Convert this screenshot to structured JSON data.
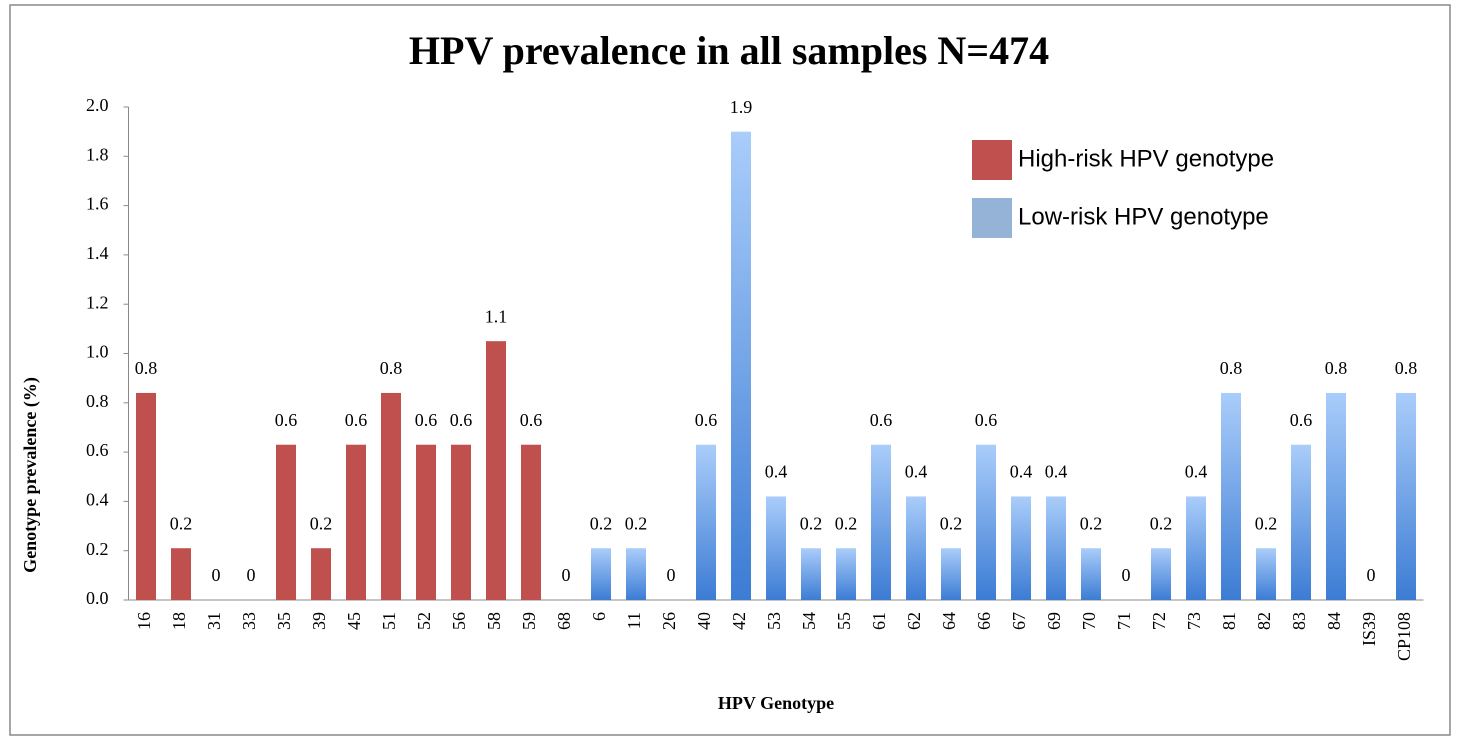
{
  "chart_data": {
    "type": "bar",
    "title": "HPV prevalence in all samples N=474",
    "x_label": "HPV Genotype",
    "y_label": "Genotype prevalence (%)",
    "categories": [
      "16",
      "18",
      "31",
      "33",
      "35",
      "39",
      "45",
      "51",
      "52",
      "56",
      "58",
      "59",
      "68",
      "6",
      "11",
      "26",
      "40",
      "42",
      "53",
      "54",
      "55",
      "61",
      "62",
      "64",
      "66",
      "67",
      "69",
      "70",
      "71",
      "72",
      "73",
      "81",
      "82",
      "83",
      "84",
      "IS39",
      "CP108"
    ],
    "series": [
      {
        "name": "High-risk HPV genotype",
        "color": "#c0504d",
        "values": [
          0.84,
          0.21,
          0,
          0,
          0.63,
          0.21,
          0.63,
          0.84,
          0.63,
          0.63,
          1.05,
          0.63,
          0,
          null,
          null,
          null,
          null,
          null,
          null,
          null,
          null,
          null,
          null,
          null,
          null,
          null,
          null,
          null,
          null,
          null,
          null,
          null,
          null,
          null,
          null,
          null,
          null
        ],
        "value_labels": [
          "0.8",
          "0.2",
          "0",
          "0",
          "0.6",
          "0.2",
          "0.6",
          "0.8",
          "0.6",
          "0.6",
          "1.1",
          "0.6",
          "0",
          null,
          null,
          null,
          null,
          null,
          null,
          null,
          null,
          null,
          null,
          null,
          null,
          null,
          null,
          null,
          null,
          null,
          null,
          null,
          null,
          null,
          null,
          null,
          null
        ]
      },
      {
        "name": "Low-risk HPV genotype",
        "color": "#95b3d7",
        "values": [
          null,
          null,
          null,
          null,
          null,
          null,
          null,
          null,
          null,
          null,
          null,
          null,
          null,
          0.21,
          0.21,
          0,
          0.63,
          1.9,
          0.42,
          0.21,
          0.21,
          0.63,
          0.42,
          0.21,
          0.63,
          0.42,
          0.42,
          0.21,
          0,
          0.21,
          0.42,
          0.84,
          0.21,
          0.63,
          0.84,
          0,
          0.84
        ],
        "value_labels": [
          null,
          null,
          null,
          null,
          null,
          null,
          null,
          null,
          null,
          null,
          null,
          null,
          null,
          "0.2",
          "0.2",
          "0",
          "0.6",
          "1.9",
          "0.4",
          "0.2",
          "0.2",
          "0.6",
          "0.4",
          "0.2",
          "0.6",
          "0.4",
          "0.4",
          "0.2",
          "0",
          "0.2",
          "0.4",
          "0.8",
          "0.2",
          "0.6",
          "0.8",
          "0",
          "0.8"
        ]
      }
    ],
    "ylim": [
      0,
      2
    ],
    "yticks": [
      {
        "value": 0,
        "label": "0.0"
      },
      {
        "value": 0.2,
        "label": "0.2"
      },
      {
        "value": 0.4,
        "label": "0.4"
      },
      {
        "value": 0.6,
        "label": "0.6"
      },
      {
        "value": 0.8,
        "label": "0.8"
      },
      {
        "value": 1,
        "label": "1.0"
      },
      {
        "value": 1.2,
        "label": "1.2"
      },
      {
        "value": 1.4,
        "label": "1.4"
      },
      {
        "value": 1.6,
        "label": "1.6"
      },
      {
        "value": 1.8,
        "label": "1.8"
      },
      {
        "value": 2,
        "label": "2.0"
      }
    ],
    "grid": false,
    "legend": "top-right"
  }
}
